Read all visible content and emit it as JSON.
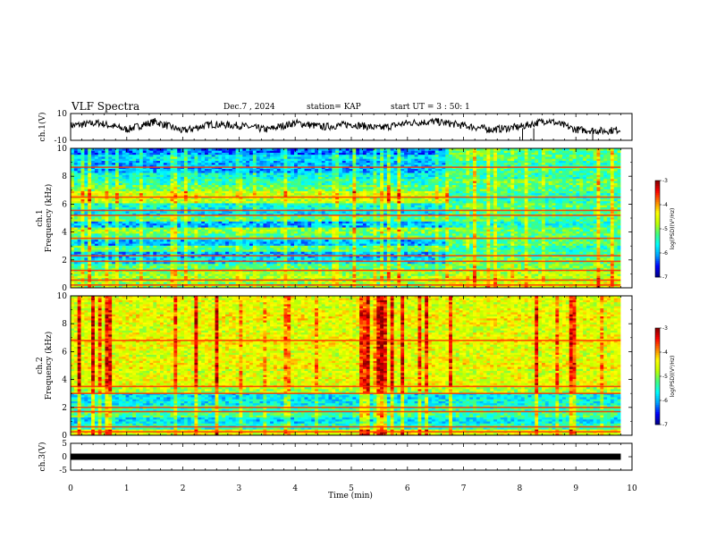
{
  "header": {
    "title": "VLF Spectra",
    "date": "Dec.7 , 2024",
    "station": "station= KAP",
    "start": "start UT = 3 : 50: 1"
  },
  "colors": {
    "colormap": [
      "#000080",
      "#0000ff",
      "#00a0ff",
      "#00ffff",
      "#40ff80",
      "#c0ff00",
      "#ffff00",
      "#ff8000",
      "#ff0000",
      "#800000"
    ],
    "trace": "#000000",
    "frame": "#000000"
  },
  "chart_data": [
    {
      "type": "line",
      "panel": "ch1-waveform",
      "ylabel": "ch.1(V)",
      "ylim": [
        -10,
        10
      ],
      "yticks": [
        "10",
        "-10"
      ],
      "x": [
        0,
        0.5,
        1,
        1.5,
        2,
        2.5,
        3,
        3.5,
        4,
        4.5,
        5,
        5.5,
        6,
        6.5,
        7,
        7.5,
        8,
        8.5,
        9,
        9.5,
        9.8
      ],
      "y": [
        1,
        3,
        -2,
        4,
        -3,
        2,
        1,
        -2,
        3,
        0,
        2,
        -1,
        3,
        4,
        1,
        -2,
        0,
        5,
        -2,
        -3,
        -2
      ]
    },
    {
      "type": "heatmap",
      "panel": "ch1-spectrogram",
      "ylabel": "ch.1\nFrequency (kHz)",
      "ylim": [
        0,
        10
      ],
      "yticks": [
        "0",
        "2",
        "4",
        "6",
        "8",
        "10"
      ],
      "colorbar": {
        "label": "log(PSD)(V²/Hz)",
        "range": [
          -7,
          -3
        ],
        "ticks": [
          "-3",
          "-4",
          "-5",
          "-6",
          "-7"
        ]
      },
      "profile_early": [
        -5,
        -4.8,
        -4.9,
        -5.2,
        -5.8,
        -6,
        -5.2,
        -6,
        -5.3,
        -5,
        -6,
        -5.2,
        -5.8,
        -5.6,
        -4.7,
        -4.6,
        -5.1,
        -5.4,
        -5.6,
        -6,
        -6,
        -5.8,
        -6.2
      ],
      "profile_late": [
        -4.5,
        -4.6,
        -4.8,
        -5,
        -5.1,
        -5.3,
        -5.4,
        -5.2,
        -5.2,
        -5.2,
        -5.5,
        -5.3,
        -5.2,
        -5.2,
        -5.4,
        -5.4,
        -5.2,
        -5.1,
        -5.4,
        -5.3,
        -5.4,
        -5.2,
        -5.2
      ],
      "transition_min": 6.7
    },
    {
      "type": "heatmap",
      "panel": "ch2-spectrogram",
      "ylabel": "ch.2\nFrequency (kHz)",
      "ylim": [
        0,
        10
      ],
      "yticks": [
        "0",
        "2",
        "4",
        "6",
        "8",
        "10"
      ],
      "colorbar": {
        "label": "log(PSD)(V²/Hz)",
        "range": [
          -7,
          -3
        ],
        "ticks": [
          "-3",
          "-4",
          "-5",
          "-6",
          "-7"
        ]
      },
      "profile_early": [
        -4.5,
        -5.5,
        -5.8,
        -5.3,
        -5.4,
        -5.7,
        -5.8,
        -4.8,
        -4.5,
        -4.5,
        -4.6,
        -4.4,
        -4.5,
        -4.6,
        -4.5,
        -4.4,
        -4.5,
        -4.6,
        -4.5,
        -4.4,
        -4.5,
        -4.6,
        -4.5
      ],
      "profile_late": [
        -4.5,
        -5.4,
        -5.7,
        -5.3,
        -5.4,
        -5.6,
        -5.7,
        -4.8,
        -4.5,
        -4.5,
        -4.6,
        -4.4,
        -4.5,
        -4.6,
        -4.5,
        -4.4,
        -4.5,
        -4.6,
        -4.5,
        -4.4,
        -4.5,
        -4.6,
        -4.5
      ],
      "transition_min": 6.7
    },
    {
      "type": "line",
      "panel": "ch3-waveform",
      "ylabel": "ch.3(V)",
      "ylim": [
        -5,
        5
      ],
      "yticks": [
        "5",
        "0",
        "-5"
      ],
      "x": [
        0,
        9.8
      ],
      "y": [
        0,
        0
      ]
    }
  ],
  "xaxis": {
    "label": "Time (min)",
    "range": [
      0,
      10
    ],
    "ticks": [
      "0",
      "1",
      "2",
      "3",
      "4",
      "5",
      "6",
      "7",
      "8",
      "9",
      "10"
    ]
  }
}
